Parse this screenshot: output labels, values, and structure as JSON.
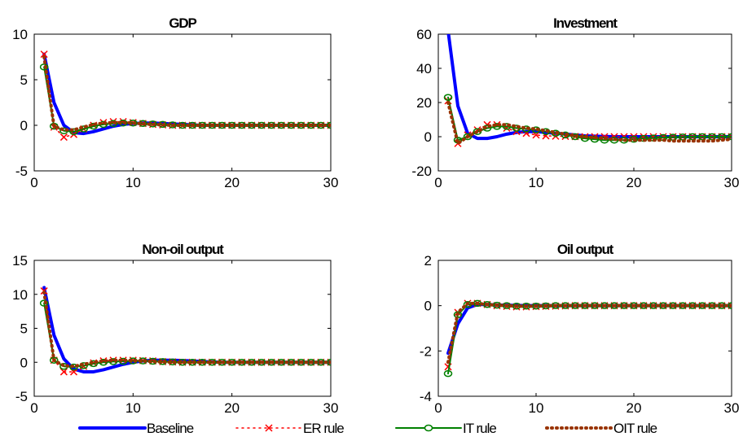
{
  "chart_data": [
    {
      "type": "line",
      "title": "GDP",
      "xlabel": "",
      "ylabel": "",
      "xlim": [
        0,
        30
      ],
      "ylim": [
        -5,
        10
      ],
      "xticks": [
        0,
        10,
        20,
        30
      ],
      "yticks": [
        -5,
        0,
        5,
        10
      ],
      "x": [
        1,
        2,
        3,
        4,
        5,
        6,
        7,
        8,
        9,
        10,
        11,
        12,
        13,
        14,
        15,
        16,
        17,
        18,
        19,
        20,
        21,
        22,
        23,
        24,
        25,
        26,
        27,
        28,
        29,
        30
      ],
      "series": [
        {
          "name": "Baseline",
          "values": [
            7.8,
            2.5,
            0.0,
            -0.8,
            -0.9,
            -0.7,
            -0.4,
            -0.1,
            0.1,
            0.2,
            0.25,
            0.25,
            0.2,
            0.15,
            0.1,
            0.05,
            0.0,
            0.0,
            0.0,
            0.0,
            0.0,
            0.0,
            0.0,
            0.0,
            0.0,
            0.0,
            0.0,
            0.0,
            0.0,
            0.0
          ]
        },
        {
          "name": "ER rule",
          "values": [
            7.8,
            -0.2,
            -1.3,
            -1.0,
            -0.4,
            0.0,
            0.3,
            0.4,
            0.4,
            0.3,
            0.2,
            0.1,
            0.05,
            0.0,
            0.0,
            0.0,
            0.0,
            0.0,
            0.0,
            0.0,
            0.0,
            0.0,
            0.0,
            0.0,
            0.0,
            0.0,
            0.0,
            0.0,
            0.0,
            0.0
          ]
        },
        {
          "name": "IT rule",
          "values": [
            6.4,
            -0.1,
            -0.6,
            -0.7,
            -0.4,
            -0.1,
            0.1,
            0.2,
            0.25,
            0.25,
            0.2,
            0.15,
            0.1,
            0.05,
            0.0,
            0.0,
            0.0,
            0.0,
            0.0,
            0.0,
            0.0,
            0.0,
            0.0,
            0.0,
            0.0,
            0.0,
            0.0,
            0.0,
            0.0,
            0.0
          ]
        },
        {
          "name": "OIT rule",
          "values": [
            7.5,
            -0.1,
            -0.5,
            -0.5,
            -0.2,
            0.1,
            0.25,
            0.3,
            0.3,
            0.25,
            0.15,
            0.1,
            0.05,
            0.0,
            0.0,
            0.0,
            0.0,
            0.0,
            0.0,
            0.0,
            0.0,
            0.0,
            0.0,
            0.0,
            0.0,
            0.0,
            0.0,
            0.0,
            0.0,
            0.0
          ]
        }
      ]
    },
    {
      "type": "line",
      "title": "Investment",
      "xlabel": "",
      "ylabel": "",
      "xlim": [
        0,
        30
      ],
      "ylim": [
        -20,
        60
      ],
      "xticks": [
        0,
        10,
        20,
        30
      ],
      "yticks": [
        -20,
        0,
        20,
        40,
        60
      ],
      "x": [
        1,
        2,
        3,
        4,
        5,
        6,
        7,
        8,
        9,
        10,
        11,
        12,
        13,
        14,
        15,
        16,
        17,
        18,
        19,
        20,
        21,
        22,
        23,
        24,
        25,
        26,
        27,
        28,
        29,
        30
      ],
      "series": [
        {
          "name": "Baseline",
          "values": [
            62,
            18,
            2,
            -1,
            -1,
            0,
            1.5,
            2.5,
            3,
            3,
            2.5,
            2,
            1.5,
            1,
            0.5,
            0.3,
            0.1,
            0,
            0,
            0,
            0,
            0,
            0,
            0,
            0,
            0,
            0,
            0,
            0,
            0
          ]
        },
        {
          "name": "ER rule",
          "values": [
            21,
            -4,
            1,
            4,
            7,
            7,
            5,
            3,
            2,
            1,
            0.5,
            0.3,
            0.2,
            0.1,
            0,
            0,
            0,
            0,
            0,
            0,
            0,
            0,
            0,
            0,
            0,
            0,
            0,
            0,
            0,
            0
          ]
        },
        {
          "name": "IT rule",
          "values": [
            23,
            -2,
            0,
            3,
            5,
            6,
            6,
            5,
            4.5,
            4,
            3,
            2,
            1,
            0,
            -1,
            -1.5,
            -2,
            -2,
            -2,
            -1.5,
            -1,
            -0.8,
            -0.5,
            -0.3,
            -0.2,
            0,
            0,
            0,
            0,
            0
          ]
        },
        {
          "name": "OIT rule",
          "values": [
            20,
            -4,
            0,
            3,
            6,
            7,
            7,
            6,
            5,
            4.5,
            3.5,
            2.5,
            1.5,
            0.5,
            0,
            -0.5,
            -1,
            -1.5,
            -2,
            -2,
            -2,
            -2,
            -2,
            -2.5,
            -2.5,
            -2.5,
            -2.5,
            -2.5,
            -2,
            -1.5
          ]
        }
      ]
    },
    {
      "type": "line",
      "title": "Non-oil output",
      "xlabel": "",
      "ylabel": "",
      "xlim": [
        0,
        30
      ],
      "ylim": [
        -5,
        15
      ],
      "xticks": [
        0,
        10,
        20,
        30
      ],
      "yticks": [
        -5,
        0,
        5,
        10,
        15
      ],
      "x": [
        1,
        2,
        3,
        4,
        5,
        6,
        7,
        8,
        9,
        10,
        11,
        12,
        13,
        14,
        15,
        16,
        17,
        18,
        19,
        20,
        21,
        22,
        23,
        24,
        25,
        26,
        27,
        28,
        29,
        30
      ],
      "series": [
        {
          "name": "Baseline",
          "values": [
            11,
            4,
            0.5,
            -1,
            -1.4,
            -1.4,
            -1.1,
            -0.7,
            -0.3,
            0,
            0.2,
            0.3,
            0.3,
            0.3,
            0.25,
            0.2,
            0.1,
            0.05,
            0,
            0,
            0,
            0,
            0,
            0,
            0,
            0,
            0,
            0,
            0,
            0
          ]
        },
        {
          "name": "ER rule",
          "values": [
            10.5,
            0.3,
            -1.4,
            -1.4,
            -0.6,
            -0.1,
            0.2,
            0.3,
            0.3,
            0.3,
            0.25,
            0.2,
            0.1,
            0.05,
            0,
            0,
            0,
            0,
            0,
            0,
            0,
            0,
            0,
            0,
            0,
            0,
            0,
            0,
            0,
            0
          ]
        },
        {
          "name": "IT rule",
          "values": [
            8.7,
            0.3,
            -0.6,
            -0.7,
            -0.5,
            -0.2,
            0,
            0.1,
            0.15,
            0.2,
            0.2,
            0.15,
            0.1,
            0.05,
            0,
            0,
            0,
            0,
            0,
            0,
            0,
            0,
            0,
            0,
            0,
            0,
            0,
            0,
            0,
            0
          ]
        },
        {
          "name": "OIT rule",
          "values": [
            10.3,
            0.3,
            -0.5,
            -0.6,
            -0.3,
            0,
            0.2,
            0.3,
            0.3,
            0.25,
            0.2,
            0.1,
            0.05,
            0,
            0,
            0,
            0,
            0,
            0,
            0,
            0,
            0,
            0,
            0,
            0,
            0,
            0,
            0,
            0,
            0
          ]
        }
      ]
    },
    {
      "type": "line",
      "title": "Oil output",
      "xlabel": "",
      "ylabel": "",
      "xlim": [
        0,
        30
      ],
      "ylim": [
        -4,
        2
      ],
      "xticks": [
        0,
        10,
        20,
        30
      ],
      "yticks": [
        -4,
        -2,
        0,
        2
      ],
      "x": [
        1,
        2,
        3,
        4,
        5,
        6,
        7,
        8,
        9,
        10,
        11,
        12,
        13,
        14,
        15,
        16,
        17,
        18,
        19,
        20,
        21,
        22,
        23,
        24,
        25,
        26,
        27,
        28,
        29,
        30
      ],
      "series": [
        {
          "name": "Baseline",
          "values": [
            -2.1,
            -0.8,
            -0.1,
            0.05,
            0.05,
            0.03,
            0.02,
            0.01,
            0,
            0,
            0,
            0,
            0,
            0,
            0,
            0,
            0,
            0,
            0,
            0,
            0,
            0,
            0,
            0,
            0,
            0,
            0,
            0,
            0,
            0
          ]
        },
        {
          "name": "ER rule",
          "values": [
            -2.7,
            -0.3,
            0.1,
            0.1,
            0.05,
            0,
            -0.03,
            -0.05,
            -0.05,
            -0.04,
            -0.03,
            -0.02,
            -0.01,
            0,
            0,
            0,
            0,
            0,
            0,
            0,
            0,
            0,
            0,
            0,
            0,
            0,
            0,
            0,
            0,
            0
          ]
        },
        {
          "name": "IT rule",
          "values": [
            -3.0,
            -0.4,
            0.05,
            0.1,
            0.05,
            0.02,
            0,
            -0.02,
            -0.02,
            -0.02,
            -0.01,
            0,
            0,
            0,
            0,
            0,
            0,
            0,
            0,
            0,
            0,
            0,
            0,
            0,
            0,
            0,
            0,
            0,
            0,
            0
          ]
        },
        {
          "name": "OIT rule",
          "values": [
            -2.5,
            -0.3,
            0.1,
            0.1,
            0.05,
            0.02,
            0,
            -0.02,
            -0.03,
            -0.02,
            -0.01,
            0,
            0,
            0,
            0,
            0,
            0,
            0,
            0,
            0,
            0,
            0,
            0,
            0,
            0,
            0,
            0,
            0,
            0,
            0
          ]
        }
      ]
    }
  ],
  "legend": {
    "placement": "bottom",
    "items": [
      {
        "label": "Baseline",
        "color": "#0000ff",
        "style": "solid-thick",
        "marker": "none"
      },
      {
        "label": "ER rule",
        "color": "#ff0000",
        "style": "dotted",
        "marker": "x"
      },
      {
        "label": "IT rule",
        "color": "#008000",
        "style": "solid",
        "marker": "o"
      },
      {
        "label": "OIT rule",
        "color": "#993300",
        "style": "dotted-thick",
        "marker": "none"
      }
    ]
  }
}
